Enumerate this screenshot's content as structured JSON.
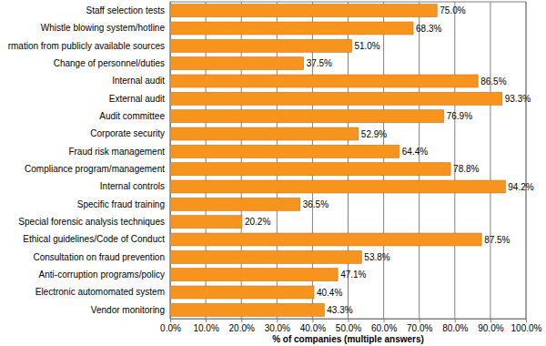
{
  "chart_data": {
    "type": "bar",
    "orientation": "horizontal",
    "categories": [
      "Staff selection tests",
      "Whistle blowing system/hotline",
      "rmation from publicly available sources",
      "Change of personnel/duties",
      "Internal audit",
      "External audit",
      "Audit committee",
      "Corporate security",
      "Fraud risk management",
      "Compliance program/management",
      "Internal controls",
      "Specific fraud training",
      "Special forensic analysis techniques",
      "Ethical guidelines/Code of Conduct",
      "Consultation on fraud prevention",
      "Anti-corruption programs/policy",
      "Electronic automomated system",
      "Vendor monitoring"
    ],
    "values": [
      75.0,
      68.3,
      51.0,
      37.5,
      86.5,
      93.3,
      76.9,
      52.9,
      64.4,
      78.8,
      94.2,
      36.5,
      20.2,
      87.5,
      53.8,
      47.1,
      40.4,
      43.3
    ],
    "value_labels": [
      "75.0%",
      "68.3%",
      "51.0%",
      "37.5%",
      "86.5%",
      "93.3%",
      "76.9%",
      "52.9%",
      "64.4%",
      "78.8%",
      "94.2%",
      "36.5%",
      "20.2%",
      "87.5%",
      "53.8%",
      "47.1%",
      "40.4%",
      "43.3%"
    ],
    "data_labels": true,
    "color": "#f7941d",
    "xlabel": "% of companies (multiple answers)",
    "xlim": [
      0,
      100
    ],
    "xticks": [
      {
        "value": 0,
        "label": "0.0%"
      },
      {
        "value": 10,
        "label": "10.0%"
      },
      {
        "value": 20,
        "label": "20.0%"
      },
      {
        "value": 30,
        "label": "30.0%"
      },
      {
        "value": 40,
        "label": "40.0%"
      },
      {
        "value": 50,
        "label": "50.0%"
      },
      {
        "value": 60,
        "label": "60.0%"
      },
      {
        "value": 70,
        "label": "70.0%"
      },
      {
        "value": 80,
        "label": "80.0%"
      },
      {
        "value": 90,
        "label": "90.0%"
      },
      {
        "value": 100,
        "label": "100.0%"
      }
    ],
    "grid": true
  }
}
